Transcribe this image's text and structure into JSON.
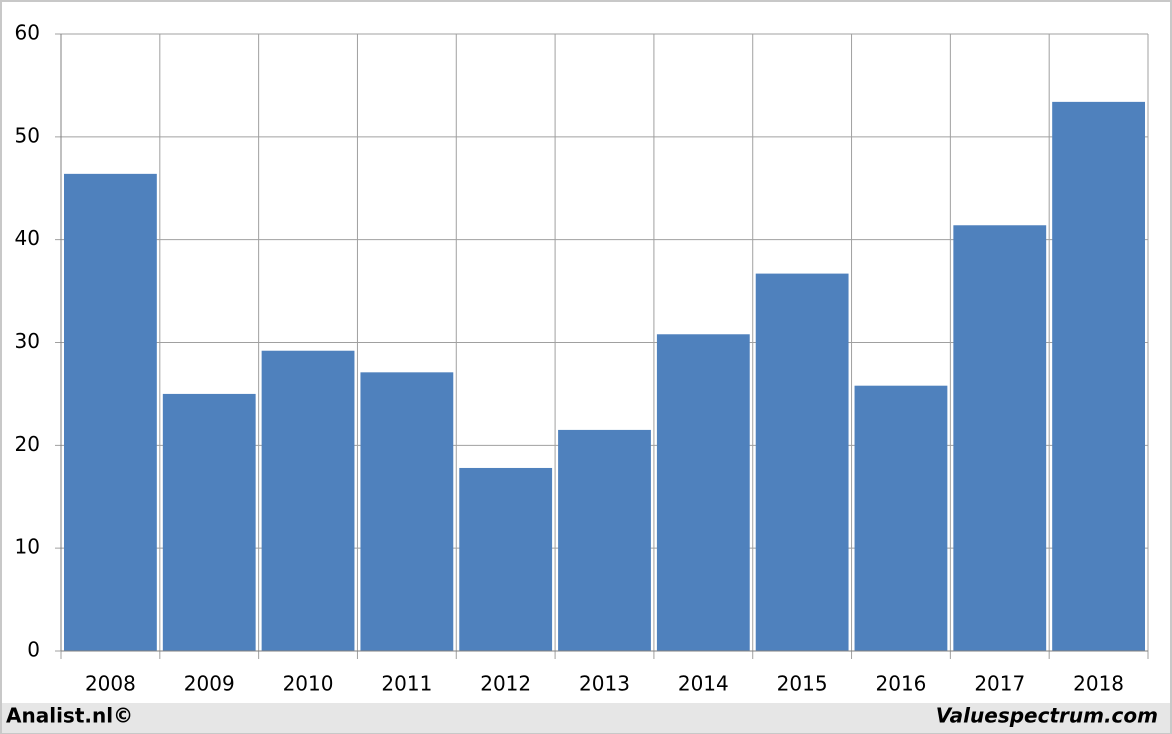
{
  "chart_data": {
    "type": "bar",
    "categories": [
      "2008",
      "2009",
      "2010",
      "2011",
      "2012",
      "2013",
      "2014",
      "2015",
      "2016",
      "2017",
      "2018"
    ],
    "values": [
      46.4,
      25,
      29.2,
      27.1,
      17.8,
      21.5,
      30.8,
      36.7,
      25.8,
      41.4,
      53.4
    ],
    "color": "#4f81bd",
    "ylim": [
      0,
      60
    ],
    "yticks": [
      0,
      10,
      20,
      30,
      40,
      50,
      60
    ],
    "grid": true,
    "footer_left": "Analist.nl©",
    "footer_right": "Valuespectrum.com"
  }
}
